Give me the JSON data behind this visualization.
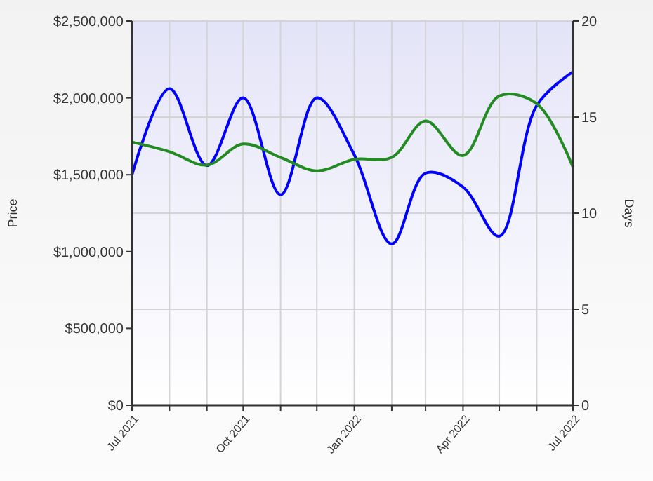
{
  "chart_data": {
    "type": "line",
    "ylabel": "Price",
    "y2label": "Days",
    "x": [
      "2021-07",
      "2021-08",
      "2021-09",
      "2021-10",
      "2021-11",
      "2021-12",
      "2022-01",
      "2022-02",
      "2022-03",
      "2022-04",
      "2022-05",
      "2022-06",
      "2022-07"
    ],
    "xlim": [
      "2021-07",
      "2022-07"
    ],
    "xticks": [
      {
        "value": "2021-07",
        "label": "Jul 2021"
      },
      {
        "value": "2021-08",
        "label": null
      },
      {
        "value": "2021-09",
        "label": null
      },
      {
        "value": "2021-10",
        "label": "Oct 2021"
      },
      {
        "value": "2021-11",
        "label": null
      },
      {
        "value": "2021-12",
        "label": null
      },
      {
        "value": "2022-01",
        "label": "Jan 2022"
      },
      {
        "value": "2022-02",
        "label": null
      },
      {
        "value": "2022-03",
        "label": null
      },
      {
        "value": "2022-04",
        "label": "Apr 2022"
      },
      {
        "value": "2022-05",
        "label": null
      },
      {
        "value": "2022-06",
        "label": null
      },
      {
        "value": "2022-07",
        "label": "Jul 2022"
      }
    ],
    "ylim": [
      0,
      2500000
    ],
    "yticks": [
      {
        "value": 0,
        "label": "$0"
      },
      {
        "value": 500000,
        "label": "$500,000"
      },
      {
        "value": 1000000,
        "label": "$1,000,000"
      },
      {
        "value": 1500000,
        "label": "$1,500,000"
      },
      {
        "value": 2000000,
        "label": "$2,000,000"
      },
      {
        "value": 2500000,
        "label": "$2,500,000"
      }
    ],
    "y2lim": [
      0,
      20
    ],
    "y2ticks": [
      0,
      5,
      10,
      15,
      20
    ],
    "grid": true,
    "series": [
      {
        "color": "#0000ff",
        "axis": "y",
        "values": [
          1500000,
          2060000,
          1560000,
          2000000,
          1370000,
          2000000,
          1630000,
          1050000,
          1510000,
          1420000,
          1100000,
          1950000,
          2170000
        ]
      },
      {
        "color": "#228b22",
        "axis": "y2",
        "values": [
          13.7,
          13.2,
          12.5,
          13.6,
          12.9,
          12.2,
          12.8,
          12.9,
          14.8,
          13.0,
          16.1,
          15.7,
          12.4
        ]
      }
    ]
  }
}
